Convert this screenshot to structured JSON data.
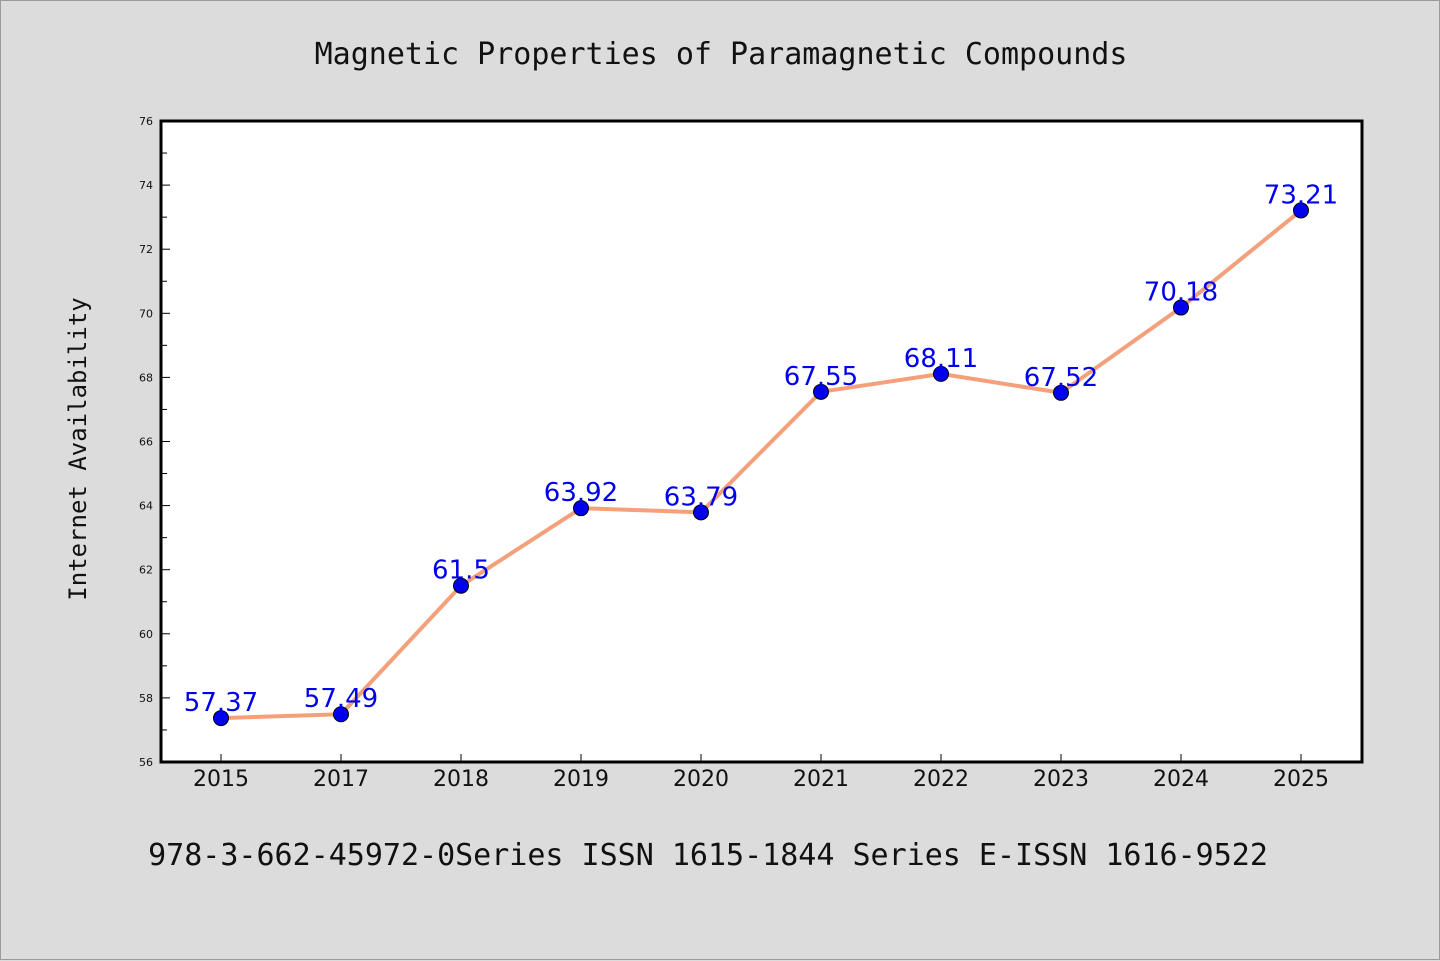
{
  "chart_data": {
    "type": "line",
    "title": "Magnetic Properties of Paramagnetic Compounds",
    "xlabel": "",
    "ylabel": "Internet Availability",
    "categories": [
      "2015",
      "2017",
      "2018",
      "2019",
      "2020",
      "2021",
      "2022",
      "2023",
      "2024",
      "2025"
    ],
    "series": [
      {
        "values": [
          57.37,
          57.49,
          61.5,
          63.92,
          63.79,
          67.55,
          68.11,
          67.52,
          70.18,
          73.21
        ],
        "labels": [
          "57.37",
          "57.49",
          "61.5",
          "63.92",
          "63.79",
          "67.55",
          "68.11",
          "67.52",
          "70.18",
          "73.21"
        ],
        "line_color": "#f4a07a",
        "marker_color": "#0000ee"
      }
    ],
    "ylim": [
      56,
      76
    ],
    "yticks": [
      "56",
      "58",
      "60",
      "62",
      "64",
      "66",
      "68",
      "70",
      "72",
      "74",
      "76"
    ],
    "grid": false,
    "label_color": "#0000ee"
  },
  "footer": {
    "text": "978-3-662-45972-0Series ISSN 1615-1844 Series E-ISSN 1616-9522"
  }
}
